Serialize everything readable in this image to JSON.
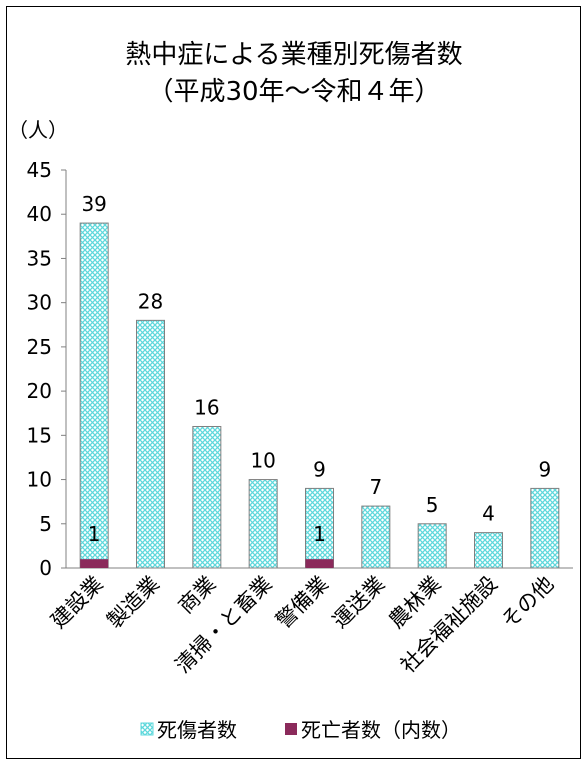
{
  "chart_data": {
    "type": "bar",
    "title": "熱中症による業種別死傷者数",
    "subtitle": "（平成30年～令和４年）",
    "ylabel": "（人）",
    "ylim": [
      0,
      45
    ],
    "yticks": [
      "0",
      "5",
      "10",
      "15",
      "20",
      "25",
      "30",
      "35",
      "40",
      "45"
    ],
    "categories": [
      "建設業",
      "製造業",
      "商業",
      "清掃・と畜業",
      "警備業",
      "運送業",
      "農林業",
      "社会福祉施設",
      "その他"
    ],
    "series": [
      {
        "name": "死傷者数",
        "values": [
          39,
          28,
          16,
          10,
          9,
          7,
          5,
          4,
          9
        ],
        "color": "#5ed8dc",
        "pattern": "crosshatch"
      },
      {
        "name": "死亡者数（内数）",
        "values": [
          1,
          0,
          0,
          0,
          1,
          0,
          0,
          0,
          0
        ],
        "color": "#8b2a5b"
      }
    ],
    "data_labels": [
      "39",
      "28",
      "16",
      "10",
      "9",
      "7",
      "5",
      "4",
      "9"
    ],
    "death_labels": [
      "1",
      "",
      "",
      "",
      "1",
      "",
      "",
      "",
      ""
    ],
    "legend_position": "bottom",
    "grid": false
  }
}
